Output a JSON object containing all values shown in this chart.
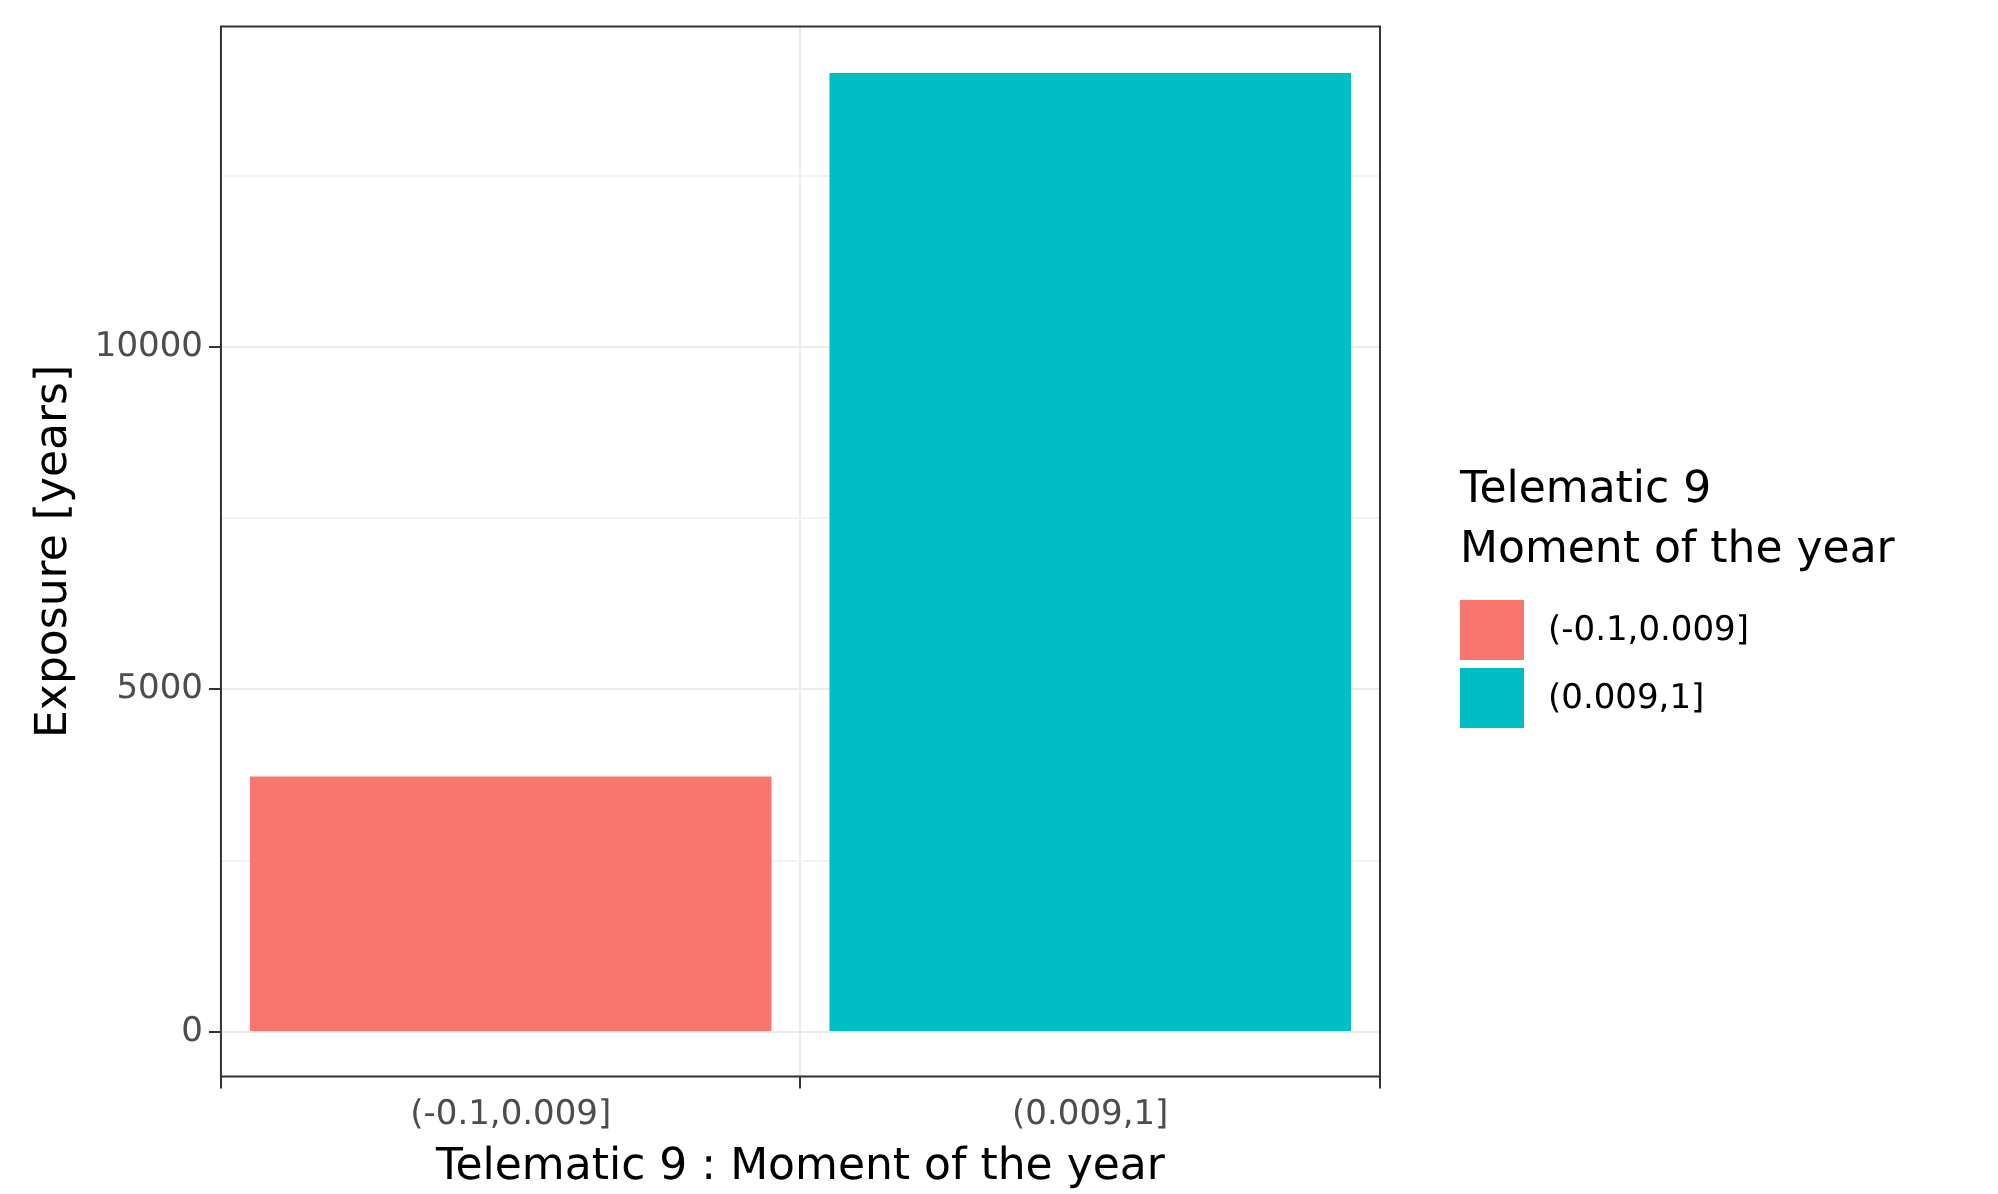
{
  "chart_data": {
    "type": "bar",
    "xlabel": "Telematic 9 : Moment of the year",
    "ylabel": "Exposure [years]",
    "legend_title": "Telematic 9\nMoment of the year",
    "categories": [
      "(-0.1,0.009]",
      "(0.009,1]"
    ],
    "series": [
      {
        "name": "(-0.1,0.009]",
        "color": "#f8766d",
        "values": [
          3730,
          null
        ]
      },
      {
        "name": "(0.009,1]",
        "color": "#00bfc4",
        "values": [
          null,
          14000
        ]
      }
    ],
    "ylim": [
      -650,
      14680
    ],
    "yticks": [
      0,
      {
        "value": 2500,
        "label": null
      },
      5000,
      {
        "value": 7500,
        "label": null
      },
      10000,
      {
        "value": 12500,
        "label": null
      }
    ],
    "grid": true,
    "legend": "right"
  }
}
